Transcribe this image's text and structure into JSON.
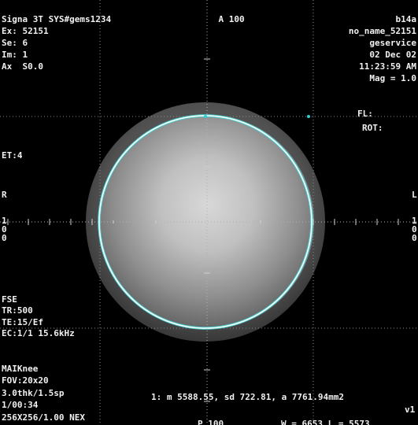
{
  "top_left": {
    "system": "Signa 3T SYS#gems1234",
    "exam": "Ex: 52151",
    "series": "Se: 6",
    "image": "Im: 1",
    "axial": "Ax  S0.0"
  },
  "top_center": {
    "orientation_label": "A 100"
  },
  "top_right": {
    "patient_id": "b14a",
    "patient_name": "no_name_52151",
    "site": "geservice",
    "date": "02 Dec 02",
    "time": "11:23:59 AM",
    "mag": "Mag = 1.0",
    "fl": "FL:",
    "rot": "ROT:"
  },
  "left_mid": {
    "echo_train": "ET:4",
    "r_label": "R",
    "r_scale_1": "1",
    "r_scale_2": "0",
    "r_scale_3": "0"
  },
  "right_mid": {
    "l_label": "L",
    "l_scale_1": "1",
    "l_scale_2": "0",
    "l_scale_3": "0"
  },
  "bottom_left": {
    "sequence": "FSE",
    "tr": "TR:500",
    "te": "TE:15/Ef",
    "ec": "EC:1/1 15.6kHz",
    "coil": "MAIKnee",
    "fov": "FOV:20x20",
    "thickness": "3.0thk/1.5sp",
    "duration": "1/00:34",
    "matrix": "256X256/1.00 NEX"
  },
  "bottom_right": {
    "roi_stats": "1: m 5588.55, sd 722.81, a 7761.94mm2",
    "version": "v1"
  },
  "bottom_center": {
    "posterior_label": "P 100",
    "window": "W = 6653 L = 5573"
  },
  "colors": {
    "overlay_text": "#f0f0f0",
    "roi_circle": "#ffffff",
    "roi_outline": "#4fd0d0",
    "cursor_dot": "#2fd0d0",
    "background": "#000000"
  }
}
